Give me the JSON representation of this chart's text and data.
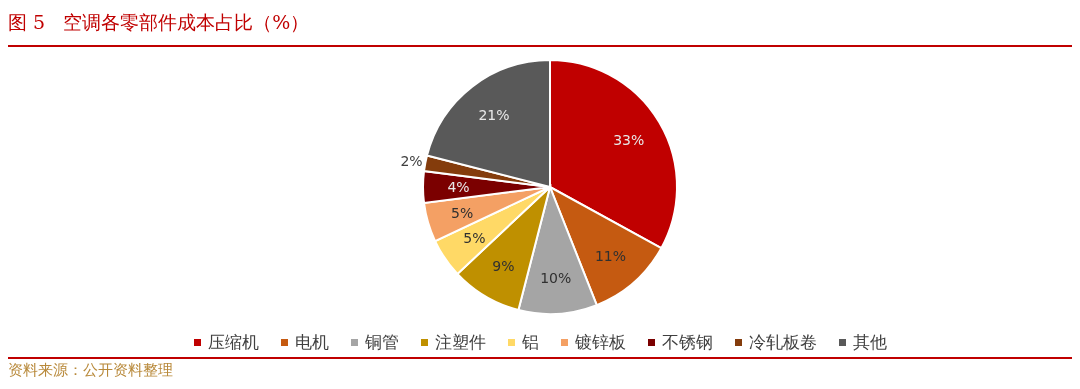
{
  "chart_data": {
    "type": "pie",
    "title": "图 5   空调各零部件成本占比（%）",
    "categories": [
      "压缩机",
      "电机",
      "铜管",
      "注塑件",
      "铝",
      "镀锌板",
      "不锈钢",
      "冷轧板卷",
      "其他"
    ],
    "values": [
      33,
      11,
      10,
      9,
      5,
      5,
      4,
      2,
      21
    ],
    "colors": [
      "#c00000",
      "#c55a11",
      "#a5a5a5",
      "#bf9000",
      "#ffd966",
      "#f4a064",
      "#7b0000",
      "#843c0c",
      "#595959"
    ],
    "value_labels": [
      "33%",
      "11%",
      "10%",
      "9%",
      "5%",
      "5%",
      "4%",
      "2%",
      "21%"
    ],
    "legend": "bottom",
    "annotations": [
      "资料来源：公开资料整理"
    ]
  }
}
